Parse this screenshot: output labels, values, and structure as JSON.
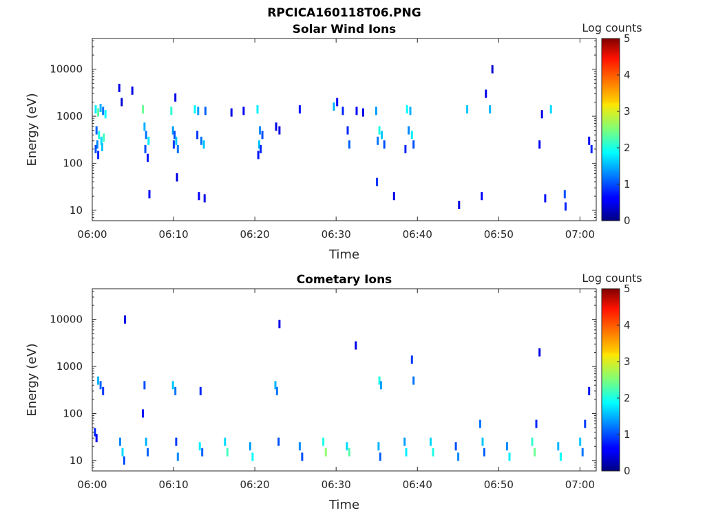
{
  "figure": {
    "title": "RPCICA160118T06.PNG"
  },
  "chart_data": [
    {
      "type": "heatmap",
      "title": "Solar Wind Ions",
      "xlabel": "Time",
      "ylabel": "Energy (eV)",
      "xlim": [
        "06:00",
        "07:02"
      ],
      "ylim": [
        6,
        45000
      ],
      "yscale": "log",
      "xticks": [
        "06:00",
        "06:10",
        "06:20",
        "06:30",
        "06:40",
        "06:50",
        "07:00"
      ],
      "yticks": [
        "10",
        "100",
        "1000",
        "10000"
      ],
      "colorbar": {
        "label": "Log counts",
        "range": [
          0,
          5
        ],
        "ticks": [
          "0",
          "1",
          "2",
          "3",
          "4",
          "5"
        ],
        "colormap": "jet"
      },
      "grid": false,
      "points": [
        {
          "t": 0.3,
          "e": 1400,
          "v": 1.8
        },
        {
          "t": 0.6,
          "e": 1200,
          "v": 2.3
        },
        {
          "t": 0.9,
          "e": 1500,
          "v": 1.5
        },
        {
          "t": 1.2,
          "e": 1300,
          "v": 1.2
        },
        {
          "t": 1.5,
          "e": 1100,
          "v": 1.9
        },
        {
          "t": 0.4,
          "e": 500,
          "v": 1.1
        },
        {
          "t": 0.7,
          "e": 400,
          "v": 2.0
        },
        {
          "t": 1.0,
          "e": 300,
          "v": 1.7
        },
        {
          "t": 0.5,
          "e": 250,
          "v": 1.3
        },
        {
          "t": 1.3,
          "e": 350,
          "v": 2.2
        },
        {
          "t": 0.3,
          "e": 200,
          "v": 1.0
        },
        {
          "t": 1.1,
          "e": 220,
          "v": 1.6
        },
        {
          "t": 0.6,
          "e": 150,
          "v": 0.8
        },
        {
          "t": 3.2,
          "e": 4000,
          "v": 0.5
        },
        {
          "t": 3.5,
          "e": 2000,
          "v": 0.4
        },
        {
          "t": 4.8,
          "e": 3500,
          "v": 0.5
        },
        {
          "t": 6.1,
          "e": 1400,
          "v": 2.4
        },
        {
          "t": 6.3,
          "e": 600,
          "v": 1.5
        },
        {
          "t": 6.5,
          "e": 400,
          "v": 1.2
        },
        {
          "t": 6.8,
          "e": 300,
          "v": 1.8
        },
        {
          "t": 6.4,
          "e": 200,
          "v": 1.0
        },
        {
          "t": 6.7,
          "e": 130,
          "v": 0.7
        },
        {
          "t": 6.9,
          "e": 22,
          "v": 0.6
        },
        {
          "t": 9.6,
          "e": 1300,
          "v": 2.1
        },
        {
          "t": 9.8,
          "e": 500,
          "v": 1.4
        },
        {
          "t": 10.0,
          "e": 400,
          "v": 1.0
        },
        {
          "t": 10.2,
          "e": 300,
          "v": 1.6
        },
        {
          "t": 10.4,
          "e": 200,
          "v": 1.2
        },
        {
          "t": 9.9,
          "e": 250,
          "v": 0.9
        },
        {
          "t": 10.1,
          "e": 2500,
          "v": 0.5
        },
        {
          "t": 10.3,
          "e": 50,
          "v": 0.5
        },
        {
          "t": 12.5,
          "e": 1400,
          "v": 1.9
        },
        {
          "t": 12.9,
          "e": 1300,
          "v": 1.4
        },
        {
          "t": 13.8,
          "e": 1300,
          "v": 1.1
        },
        {
          "t": 12.8,
          "e": 400,
          "v": 0.9
        },
        {
          "t": 13.3,
          "e": 300,
          "v": 1.2
        },
        {
          "t": 13.6,
          "e": 250,
          "v": 1.6
        },
        {
          "t": 13.0,
          "e": 20,
          "v": 0.6
        },
        {
          "t": 13.7,
          "e": 18,
          "v": 0.5
        },
        {
          "t": 17.0,
          "e": 1200,
          "v": 0.5
        },
        {
          "t": 18.5,
          "e": 1300,
          "v": 0.6
        },
        {
          "t": 20.2,
          "e": 1400,
          "v": 1.8
        },
        {
          "t": 20.5,
          "e": 500,
          "v": 1.3
        },
        {
          "t": 20.8,
          "e": 400,
          "v": 1.0
        },
        {
          "t": 20.4,
          "e": 250,
          "v": 1.6
        },
        {
          "t": 20.6,
          "e": 200,
          "v": 0.8
        },
        {
          "t": 20.3,
          "e": 150,
          "v": 0.7
        },
        {
          "t": 22.5,
          "e": 600,
          "v": 0.5
        },
        {
          "t": 22.9,
          "e": 500,
          "v": 0.5
        },
        {
          "t": 25.4,
          "e": 1400,
          "v": 0.7
        },
        {
          "t": 29.6,
          "e": 1600,
          "v": 1.5
        },
        {
          "t": 30.0,
          "e": 2000,
          "v": 0.6
        },
        {
          "t": 30.7,
          "e": 1300,
          "v": 0.8
        },
        {
          "t": 32.4,
          "e": 1300,
          "v": 0.6
        },
        {
          "t": 33.2,
          "e": 1200,
          "v": 0.5
        },
        {
          "t": 34.8,
          "e": 1300,
          "v": 1.4
        },
        {
          "t": 35.2,
          "e": 500,
          "v": 2.0
        },
        {
          "t": 35.5,
          "e": 400,
          "v": 1.6
        },
        {
          "t": 35.0,
          "e": 300,
          "v": 1.2
        },
        {
          "t": 35.8,
          "e": 250,
          "v": 1.0
        },
        {
          "t": 31.3,
          "e": 500,
          "v": 0.8
        },
        {
          "t": 31.5,
          "e": 250,
          "v": 1.1
        },
        {
          "t": 34.9,
          "e": 40,
          "v": 0.9
        },
        {
          "t": 38.6,
          "e": 1400,
          "v": 1.9
        },
        {
          "t": 39.0,
          "e": 1300,
          "v": 1.5
        },
        {
          "t": 38.8,
          "e": 500,
          "v": 1.3
        },
        {
          "t": 39.2,
          "e": 400,
          "v": 1.8
        },
        {
          "t": 39.4,
          "e": 250,
          "v": 1.0
        },
        {
          "t": 38.4,
          "e": 200,
          "v": 0.8
        },
        {
          "t": 46.0,
          "e": 1400,
          "v": 1.6
        },
        {
          "t": 48.8,
          "e": 1400,
          "v": 1.5
        },
        {
          "t": 48.3,
          "e": 3000,
          "v": 0.5
        },
        {
          "t": 49.1,
          "e": 10000,
          "v": 0.4
        },
        {
          "t": 54.9,
          "e": 250,
          "v": 0.6
        },
        {
          "t": 55.2,
          "e": 1100,
          "v": 0.5
        },
        {
          "t": 55.6,
          "e": 18,
          "v": 0.7
        },
        {
          "t": 58.0,
          "e": 22,
          "v": 1.0
        },
        {
          "t": 58.1,
          "e": 12,
          "v": 0.8
        },
        {
          "t": 61.0,
          "e": 300,
          "v": 0.6
        },
        {
          "t": 61.3,
          "e": 200,
          "v": 0.8
        },
        {
          "t": 56.3,
          "e": 1400,
          "v": 1.7
        },
        {
          "t": 47.8,
          "e": 20,
          "v": 0.6
        },
        {
          "t": 45.0,
          "e": 13,
          "v": 0.5
        },
        {
          "t": 37.0,
          "e": 20,
          "v": 0.5
        }
      ]
    },
    {
      "type": "heatmap",
      "title": "Cometary Ions",
      "xlabel": "Time",
      "ylabel": "Energy (eV)",
      "xlim": [
        "06:00",
        "07:02"
      ],
      "ylim": [
        6,
        45000
      ],
      "yscale": "log",
      "xticks": [
        "06:00",
        "06:10",
        "06:20",
        "06:30",
        "06:40",
        "06:50",
        "07:00"
      ],
      "yticks": [
        "10",
        "100",
        "1000",
        "10000"
      ],
      "colorbar": {
        "label": "Log counts",
        "range": [
          0,
          5
        ],
        "ticks": [
          "0",
          "1",
          "2",
          "3",
          "4",
          "5"
        ],
        "colormap": "jet"
      },
      "grid": false,
      "points": [
        {
          "t": 0.2,
          "e": 40,
          "v": 0.8
        },
        {
          "t": 0.4,
          "e": 30,
          "v": 0.6
        },
        {
          "t": 0.6,
          "e": 500,
          "v": 1.5
        },
        {
          "t": 0.9,
          "e": 400,
          "v": 1.1
        },
        {
          "t": 1.2,
          "e": 300,
          "v": 0.9
        },
        {
          "t": 3.3,
          "e": 25,
          "v": 1.3
        },
        {
          "t": 3.6,
          "e": 15,
          "v": 1.7
        },
        {
          "t": 3.8,
          "e": 10,
          "v": 1.0
        },
        {
          "t": 3.9,
          "e": 10000,
          "v": 0.5
        },
        {
          "t": 6.5,
          "e": 25,
          "v": 1.5
        },
        {
          "t": 6.7,
          "e": 15,
          "v": 1.1
        },
        {
          "t": 6.3,
          "e": 400,
          "v": 1.0
        },
        {
          "t": 6.1,
          "e": 100,
          "v": 0.7
        },
        {
          "t": 9.8,
          "e": 400,
          "v": 1.6
        },
        {
          "t": 10.1,
          "e": 300,
          "v": 1.2
        },
        {
          "t": 10.2,
          "e": 25,
          "v": 0.9
        },
        {
          "t": 10.4,
          "e": 12,
          "v": 1.3
        },
        {
          "t": 13.1,
          "e": 20,
          "v": 1.8
        },
        {
          "t": 13.4,
          "e": 15,
          "v": 1.1
        },
        {
          "t": 13.2,
          "e": 300,
          "v": 0.8
        },
        {
          "t": 16.2,
          "e": 25,
          "v": 1.7
        },
        {
          "t": 16.5,
          "e": 15,
          "v": 2.2
        },
        {
          "t": 19.3,
          "e": 20,
          "v": 1.4
        },
        {
          "t": 19.6,
          "e": 12,
          "v": 1.9
        },
        {
          "t": 22.4,
          "e": 400,
          "v": 1.5
        },
        {
          "t": 22.6,
          "e": 300,
          "v": 1.2
        },
        {
          "t": 22.8,
          "e": 25,
          "v": 1.0
        },
        {
          "t": 22.9,
          "e": 8000,
          "v": 0.5
        },
        {
          "t": 25.4,
          "e": 20,
          "v": 1.3
        },
        {
          "t": 25.7,
          "e": 12,
          "v": 1.0
        },
        {
          "t": 28.3,
          "e": 25,
          "v": 2.0
        },
        {
          "t": 28.6,
          "e": 15,
          "v": 2.6
        },
        {
          "t": 31.2,
          "e": 20,
          "v": 1.7
        },
        {
          "t": 31.5,
          "e": 15,
          "v": 2.3
        },
        {
          "t": 32.3,
          "e": 2800,
          "v": 0.5
        },
        {
          "t": 35.2,
          "e": 500,
          "v": 2.0
        },
        {
          "t": 35.4,
          "e": 400,
          "v": 1.4
        },
        {
          "t": 35.1,
          "e": 20,
          "v": 1.5
        },
        {
          "t": 35.3,
          "e": 12,
          "v": 1.1
        },
        {
          "t": 38.3,
          "e": 25,
          "v": 1.4
        },
        {
          "t": 38.5,
          "e": 15,
          "v": 1.8
        },
        {
          "t": 39.2,
          "e": 1400,
          "v": 0.9
        },
        {
          "t": 39.4,
          "e": 500,
          "v": 1.2
        },
        {
          "t": 41.5,
          "e": 25,
          "v": 1.7
        },
        {
          "t": 41.8,
          "e": 15,
          "v": 2.0
        },
        {
          "t": 44.6,
          "e": 20,
          "v": 1.0
        },
        {
          "t": 44.9,
          "e": 12,
          "v": 1.3
        },
        {
          "t": 47.6,
          "e": 60,
          "v": 1.2
        },
        {
          "t": 47.9,
          "e": 25,
          "v": 1.6
        },
        {
          "t": 48.1,
          "e": 15,
          "v": 1.1
        },
        {
          "t": 50.9,
          "e": 20,
          "v": 1.3
        },
        {
          "t": 51.2,
          "e": 12,
          "v": 1.8
        },
        {
          "t": 54.0,
          "e": 25,
          "v": 2.1
        },
        {
          "t": 54.3,
          "e": 15,
          "v": 2.4
        },
        {
          "t": 54.5,
          "e": 60,
          "v": 0.8
        },
        {
          "t": 54.9,
          "e": 2000,
          "v": 0.5
        },
        {
          "t": 57.2,
          "e": 20,
          "v": 1.5
        },
        {
          "t": 57.5,
          "e": 12,
          "v": 1.9
        },
        {
          "t": 59.9,
          "e": 25,
          "v": 1.6
        },
        {
          "t": 60.2,
          "e": 15,
          "v": 1.2
        },
        {
          "t": 61.0,
          "e": 300,
          "v": 0.7
        },
        {
          "t": 60.5,
          "e": 60,
          "v": 0.9
        }
      ]
    }
  ]
}
